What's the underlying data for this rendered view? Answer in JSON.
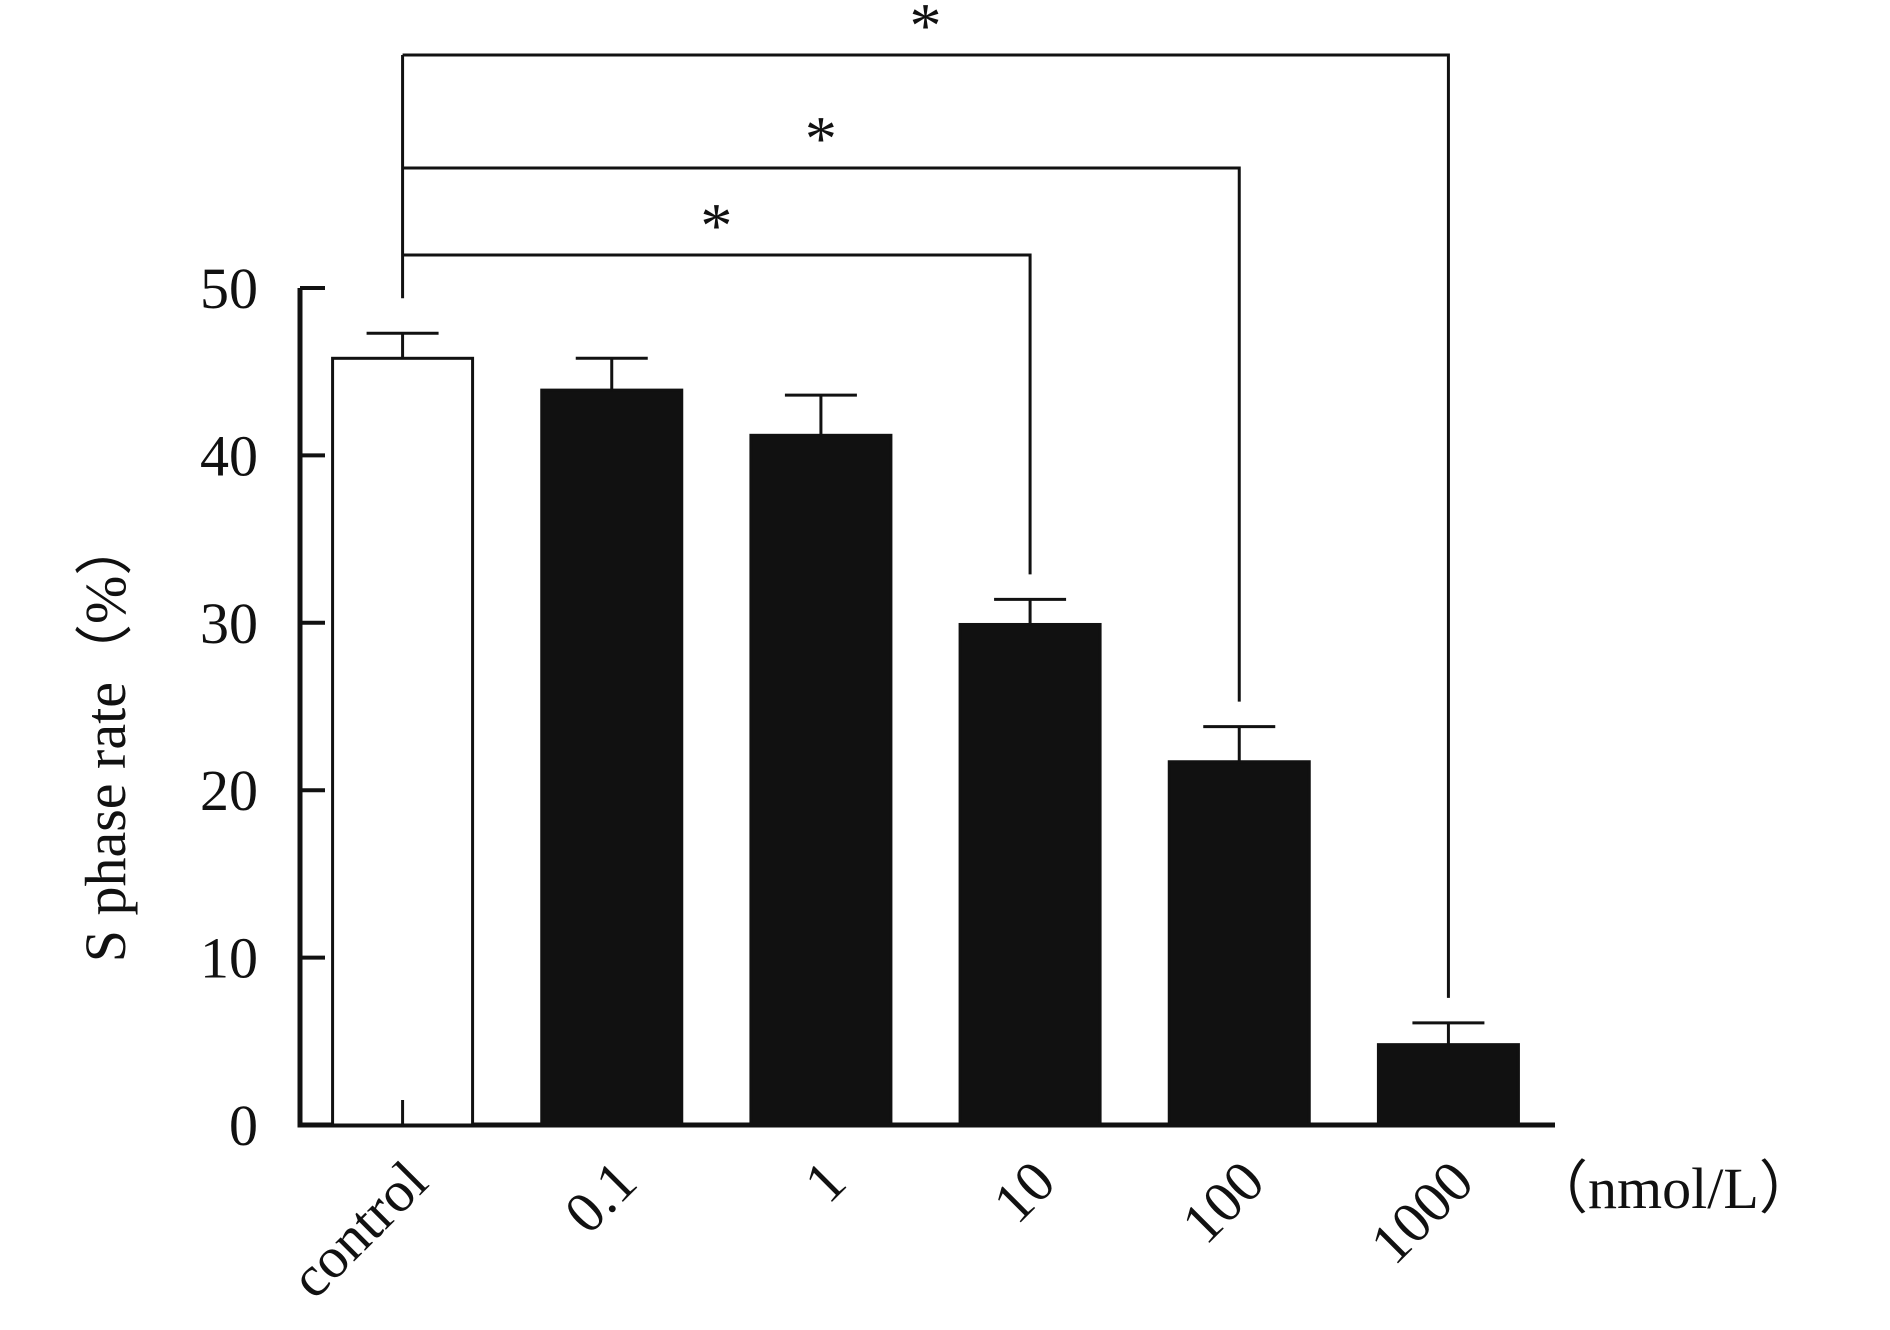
{
  "chart_data": {
    "type": "bar",
    "categories": [
      "control",
      "0.1",
      "1",
      "10",
      "100",
      "1000"
    ],
    "values": [
      45.8,
      43.9,
      41.2,
      29.9,
      21.7,
      4.8
    ],
    "errors": [
      1.5,
      1.9,
      2.4,
      1.5,
      2.1,
      1.3
    ],
    "bar_colors": [
      "#ffffff",
      "#111111",
      "#111111",
      "#111111",
      "#111111",
      "#111111"
    ],
    "ylabel": "S phase rate（%）",
    "x_unit": "（nmol/L）",
    "ylim": [
      0,
      50
    ],
    "yticks": [
      0,
      10,
      20,
      30,
      40,
      50
    ],
    "ytick_labels": [
      "0",
      "10",
      "20",
      "30",
      "40",
      "50"
    ],
    "grid": false,
    "significance": [
      {
        "from": "control",
        "to": "10",
        "label": "*",
        "level": 1
      },
      {
        "from": "control",
        "to": "100",
        "label": "*",
        "level": 2
      },
      {
        "from": "control",
        "to": "1000",
        "label": "*",
        "level": 3
      }
    ]
  }
}
